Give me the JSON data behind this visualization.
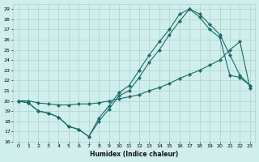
{
  "xlabel": "Humidex (Indice chaleur)",
  "bg_color": "#d0eeeb",
  "grid_color": "#a8d5ce",
  "line_color": "#1a6b6b",
  "xlim": [
    -0.5,
    23.5
  ],
  "ylim": [
    16,
    29.5
  ],
  "xticks": [
    0,
    1,
    2,
    3,
    4,
    5,
    6,
    7,
    8,
    9,
    10,
    11,
    12,
    13,
    14,
    15,
    16,
    17,
    18,
    19,
    20,
    21,
    22,
    23
  ],
  "yticks": [
    16,
    17,
    18,
    19,
    20,
    21,
    22,
    23,
    24,
    25,
    26,
    27,
    28,
    29
  ],
  "line1_x": [
    0,
    1,
    2,
    3,
    4,
    5,
    6,
    7,
    8,
    9,
    10,
    11,
    12,
    13,
    14,
    15,
    16,
    17,
    18,
    19,
    20,
    21,
    22,
    23
  ],
  "line1_y": [
    20,
    19.8,
    19,
    18.8,
    18.4,
    17.5,
    17.2,
    16.5,
    18.0,
    19.2,
    20.5,
    21.0,
    22.3,
    23.8,
    25.0,
    26.5,
    27.8,
    29.0,
    28.5,
    27.5,
    26.5,
    24.5,
    22.5,
    21.5
  ],
  "line2_x": [
    0,
    1,
    2,
    3,
    4,
    5,
    6,
    7,
    8,
    9,
    10,
    11,
    12,
    13,
    14,
    15,
    16,
    17,
    18,
    19,
    20,
    21,
    22,
    23
  ],
  "line2_y": [
    20,
    19.8,
    19,
    18.8,
    18.4,
    17.5,
    17.2,
    16.5,
    18.3,
    19.5,
    20.8,
    21.5,
    23.0,
    24.5,
    25.8,
    27.0,
    28.5,
    29.0,
    28.2,
    27.0,
    26.2,
    22.5,
    22.3,
    21.5
  ],
  "line3_x": [
    0,
    1,
    2,
    3,
    4,
    5,
    6,
    7,
    8,
    9,
    10,
    11,
    12,
    13,
    14,
    15,
    16,
    17,
    18,
    19,
    20,
    21,
    22,
    23
  ],
  "line3_y": [
    20,
    20.0,
    19.8,
    19.7,
    19.6,
    19.6,
    19.7,
    19.7,
    19.8,
    20.0,
    20.2,
    20.4,
    20.6,
    21.0,
    21.3,
    21.7,
    22.2,
    22.6,
    23.0,
    23.5,
    24.0,
    25.0,
    25.8,
    21.2
  ]
}
